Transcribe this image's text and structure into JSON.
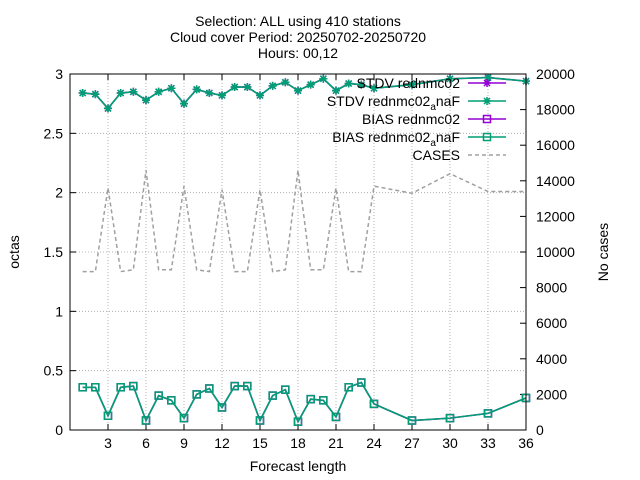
{
  "chart_data": {
    "type": "line",
    "title_lines": [
      "Selection: ALL using   410 stations",
      "Cloud cover   Period: 20250702-20250720",
      "Hours: 00,12"
    ],
    "xlabel": "Forecast length",
    "ylabel": "octas",
    "y2label": "No cases",
    "xlim": [
      0,
      36
    ],
    "ylim": [
      0,
      3
    ],
    "y2lim": [
      0,
      20000
    ],
    "xticks": [
      3,
      6,
      9,
      12,
      15,
      18,
      21,
      24,
      27,
      30,
      33,
      36
    ],
    "yticks": [
      0,
      0.5,
      1,
      1.5,
      2,
      2.5,
      3
    ],
    "yticklabels": [
      "0",
      "0.5",
      "1",
      "1.5",
      "2",
      "2.5",
      "3"
    ],
    "y2ticks": [
      0,
      2000,
      4000,
      6000,
      8000,
      10000,
      12000,
      14000,
      16000,
      18000,
      20000
    ],
    "grid": true,
    "legend_position": "top-right",
    "x": [
      1,
      2,
      3,
      4,
      5,
      6,
      7,
      8,
      9,
      10,
      11,
      12,
      13,
      14,
      15,
      16,
      17,
      18,
      19,
      20,
      21,
      22,
      23,
      24,
      27,
      30,
      33,
      36
    ],
    "series": [
      {
        "name": "STDV rednmc02",
        "legend_label": "STDV rednmc02",
        "color": "#9400d3",
        "marker": "star",
        "axis": "y1",
        "values": [
          2.84,
          2.83,
          2.71,
          2.84,
          2.85,
          2.78,
          2.85,
          2.88,
          2.75,
          2.87,
          2.84,
          2.82,
          2.89,
          2.89,
          2.82,
          2.9,
          2.93,
          2.86,
          2.91,
          2.96,
          2.86,
          2.92,
          2.91,
          2.88,
          2.91,
          2.96,
          2.97,
          2.94
        ]
      },
      {
        "name": "STDV rednmc02_anaF",
        "legend_label": "STDV rednmc02",
        "legend_sub": "a",
        "legend_suffix": "naF",
        "color": "#009e73",
        "marker": "star",
        "axis": "y1",
        "values": [
          2.84,
          2.83,
          2.71,
          2.84,
          2.85,
          2.78,
          2.85,
          2.88,
          2.75,
          2.87,
          2.84,
          2.82,
          2.89,
          2.89,
          2.82,
          2.9,
          2.93,
          2.86,
          2.91,
          2.96,
          2.86,
          2.92,
          2.91,
          2.88,
          2.91,
          2.96,
          2.97,
          2.94
        ]
      },
      {
        "name": "BIAS rednmc02",
        "legend_label": "BIAS rednmc02",
        "color": "#9400d3",
        "marker": "square",
        "axis": "y1",
        "values": [
          0.36,
          0.36,
          0.12,
          0.36,
          0.37,
          0.08,
          0.29,
          0.25,
          0.1,
          0.3,
          0.35,
          0.19,
          0.37,
          0.37,
          0.08,
          0.29,
          0.34,
          0.07,
          0.26,
          0.25,
          0.11,
          0.36,
          0.4,
          0.22,
          0.08,
          0.1,
          0.14,
          0.27
        ]
      },
      {
        "name": "BIAS rednmc02_anaF",
        "legend_label": "BIAS rednmc02",
        "legend_sub": "a",
        "legend_suffix": "naF",
        "color": "#009e73",
        "marker": "square",
        "axis": "y1",
        "values": [
          0.36,
          0.36,
          0.12,
          0.36,
          0.37,
          0.08,
          0.29,
          0.25,
          0.1,
          0.3,
          0.35,
          0.19,
          0.37,
          0.37,
          0.08,
          0.29,
          0.34,
          0.07,
          0.26,
          0.25,
          0.11,
          0.36,
          0.4,
          0.22,
          0.08,
          0.1,
          0.14,
          0.27
        ]
      },
      {
        "name": "CASES",
        "legend_label": "CASES",
        "color": "#a0a0a0",
        "marker": "none",
        "dashed": true,
        "axis": "y2",
        "values": [
          8900,
          8900,
          13600,
          8900,
          9000,
          14600,
          9000,
          9000,
          13700,
          9000,
          8900,
          13500,
          8900,
          8900,
          13500,
          8900,
          9000,
          14600,
          9000,
          9000,
          13600,
          8900,
          8900,
          13700,
          13300,
          14400,
          13400,
          13400
        ]
      }
    ]
  }
}
